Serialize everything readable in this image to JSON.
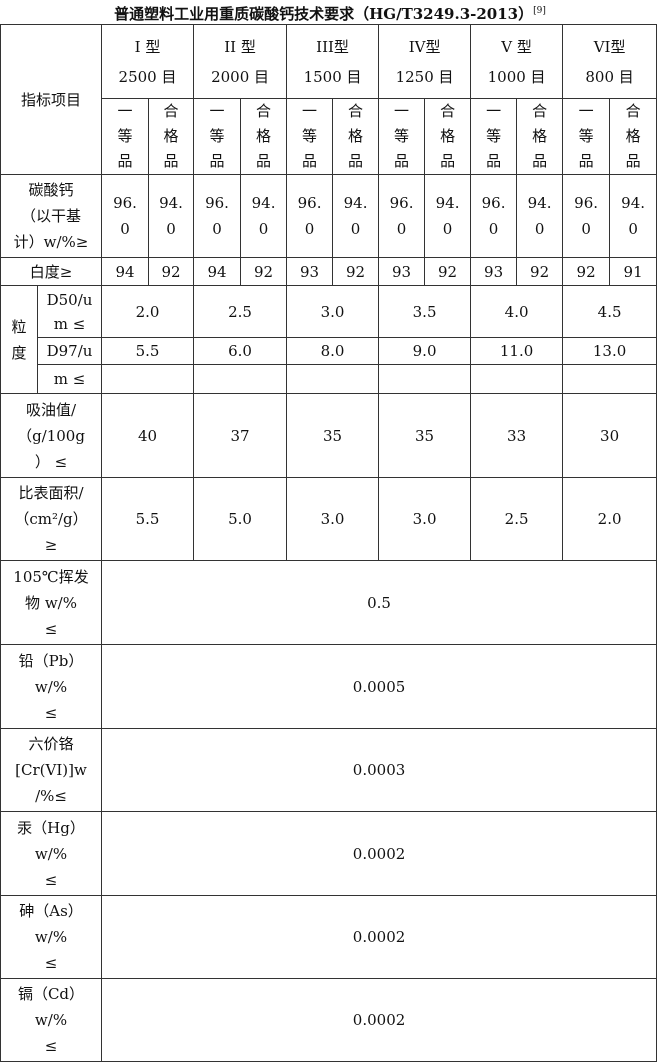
{
  "title": "普通塑料工业用重质碳酸钙技术要求（HG/T3249.3-2013）",
  "title_ref": "[9]",
  "header": {
    "item_label": "指标项目",
    "types": [
      {
        "type": "I 型",
        "mesh": "2500 目"
      },
      {
        "type": "II 型",
        "mesh": "2000 目"
      },
      {
        "type": "III型",
        "mesh": "1500 目"
      },
      {
        "type": "IV型",
        "mesh": "1250 目"
      },
      {
        "type": "V 型",
        "mesh": "1000 目"
      },
      {
        "type": "VI型",
        "mesh": "800 目"
      }
    ],
    "grade_first": "一\n等\n品",
    "grade_qualified": "合\n格\n品"
  },
  "rows": {
    "caco3": {
      "label": "碳酸钙\n（以干基\n计）w/%≥",
      "values": [
        "96.\n0",
        "94.\n0",
        "96.\n0",
        "94.\n0",
        "96.\n0",
        "94.\n0",
        "96.\n0",
        "94.\n0",
        "96.\n0",
        "94.\n0",
        "96.\n0",
        "94.\n0"
      ]
    },
    "whiteness": {
      "label": "白度≥",
      "values": [
        "94",
        "92",
        "94",
        "92",
        "93",
        "92",
        "93",
        "92",
        "93",
        "92",
        "92",
        "91"
      ]
    },
    "particle": {
      "label": "粒\n度",
      "d50_label": "D50/u\nm ≤",
      "d50": [
        "2.0",
        "2.5",
        "3.0",
        "3.5",
        "4.0",
        "4.5"
      ],
      "d97_label": "D97/u",
      "d97": [
        "5.5",
        "6.0",
        "8.0",
        "9.0",
        "11.0",
        "13.0"
      ],
      "d97_label_cont": "m ≤"
    },
    "oil": {
      "label": "吸油值/\n（g/100g\n）  ≤",
      "values": [
        "40",
        "37",
        "35",
        "35",
        "33",
        "30"
      ]
    },
    "surface": {
      "label": "比表面积/\n（cm²/g）\n≥",
      "values": [
        "5.5",
        "5.0",
        "3.0",
        "3.0",
        "2.5",
        "2.0"
      ]
    },
    "volatile": {
      "label": "105℃挥发\n物 w/%\n≤",
      "value": "0.5"
    },
    "lead": {
      "label": "铅（Pb）\nw/%\n≤",
      "value": "0.0005"
    },
    "chromium": {
      "label": "六价铬\n[Cr(VI)]w\n/%≤",
      "value": "0.0003"
    },
    "mercury": {
      "label": "汞（Hg）\nw/%\n≤",
      "value": "0.0002"
    },
    "arsenic": {
      "label": "砷（As）\nw/%\n≤",
      "value": "0.0002"
    },
    "cadmium": {
      "label": "镉（Cd）\nw/%\n≤",
      "value": "0.0002"
    }
  }
}
